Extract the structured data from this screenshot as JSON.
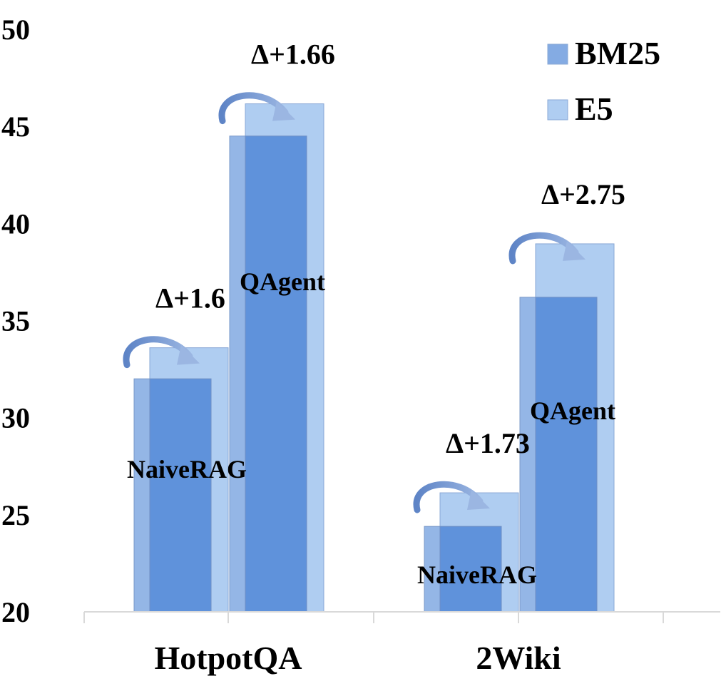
{
  "chart_data": {
    "type": "bar",
    "categories": [
      "HotpotQA",
      "2Wiki"
    ],
    "methods": [
      "NaiveRAG",
      "QAgent"
    ],
    "series": [
      {
        "name": "BM25",
        "color": "#5b8fd9",
        "values": {
          "HotpotQA": {
            "NaiveRAG": 32.0,
            "QAgent": 44.5
          },
          "2Wiki": {
            "NaiveRAG": 24.4,
            "QAgent": 36.2
          }
        }
      },
      {
        "name": "E5",
        "color": "#a6c8f0",
        "values": {
          "HotpotQA": {
            "NaiveRAG": 33.6,
            "QAgent": 46.16
          },
          "2Wiki": {
            "NaiveRAG": 26.13,
            "QAgent": 38.95
          }
        }
      }
    ],
    "annotations": [
      {
        "category": "HotpotQA",
        "method": "NaiveRAG",
        "text": "Δ+1.6"
      },
      {
        "category": "HotpotQA",
        "method": "QAgent",
        "text": "Δ+1.66"
      },
      {
        "category": "2Wiki",
        "method": "NaiveRAG",
        "text": "Δ+1.73"
      },
      {
        "category": "2Wiki",
        "method": "QAgent",
        "text": "Δ+2.75"
      }
    ],
    "ylim": [
      20,
      50
    ],
    "yticks": [
      "20",
      "25",
      "30",
      "35",
      "40",
      "45",
      "50"
    ],
    "legend_position": "top-right",
    "title": "",
    "xlabel": "",
    "ylabel": ""
  }
}
